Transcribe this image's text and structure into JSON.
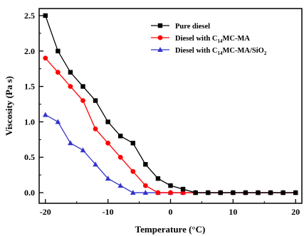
{
  "chart_data": {
    "type": "line",
    "title": "",
    "xlabel": "Temperature (°C)",
    "ylabel": "Viscosity (Pa s)",
    "xlim": [
      -21,
      21
    ],
    "ylim": [
      -0.15,
      2.6
    ],
    "x_ticks": [
      -20,
      -10,
      0,
      10,
      20
    ],
    "x_tick_labels": [
      "-20",
      "-10",
      "0",
      "10",
      "20"
    ],
    "y_ticks": [
      0.0,
      0.5,
      1.0,
      1.5,
      2.0,
      2.5
    ],
    "y_tick_labels": [
      "0.0",
      "0.5",
      "1.0",
      "1.5",
      "2.0",
      "2.5"
    ],
    "grid": false,
    "legend_position": "top-right",
    "x": [
      -20,
      -18,
      -16,
      -14,
      -12,
      -10,
      -8,
      -6,
      -4,
      -2,
      0,
      2,
      4,
      6,
      8,
      10,
      12,
      14,
      16,
      18,
      20
    ],
    "series": [
      {
        "name": "Pure diesel",
        "legend_main": "Pure diesel",
        "legend_sub": "",
        "legend_tail": "",
        "color": "#000000",
        "marker": "square",
        "values": [
          2.5,
          2.0,
          1.7,
          1.5,
          1.3,
          1.0,
          0.8,
          0.7,
          0.4,
          0.2,
          0.1,
          0.05,
          0.0,
          0.0,
          0.0,
          0.0,
          0.0,
          0.0,
          0.0,
          0.0,
          0.0
        ]
      },
      {
        "name": "Diesel with C14MC-MA",
        "legend_main": "Diesel with C",
        "legend_sub": "14",
        "legend_tail": "MC-MA",
        "color": "#ff0000",
        "marker": "circle",
        "values": [
          1.9,
          1.7,
          1.5,
          1.3,
          0.9,
          0.7,
          0.5,
          0.3,
          0.1,
          0.0,
          0.0,
          0.0,
          0.0,
          0.0,
          0.0,
          0.0,
          0.0,
          0.0,
          0.0,
          0.0,
          0.0
        ]
      },
      {
        "name": "Diesel with C14MC-MA/SiO2",
        "legend_main": "Diesel with C",
        "legend_sub": "14",
        "legend_tail": "MC-MA/SiO",
        "legend_sub2": "2",
        "color": "#3333cc",
        "marker": "triangle",
        "values": [
          1.1,
          1.0,
          0.7,
          0.6,
          0.4,
          0.2,
          0.1,
          0.0,
          0.0,
          0.0,
          0.0,
          0.0,
          0.0,
          0.0,
          0.0,
          0.0,
          0.0,
          0.0,
          0.0,
          0.0,
          0.0
        ]
      }
    ]
  }
}
